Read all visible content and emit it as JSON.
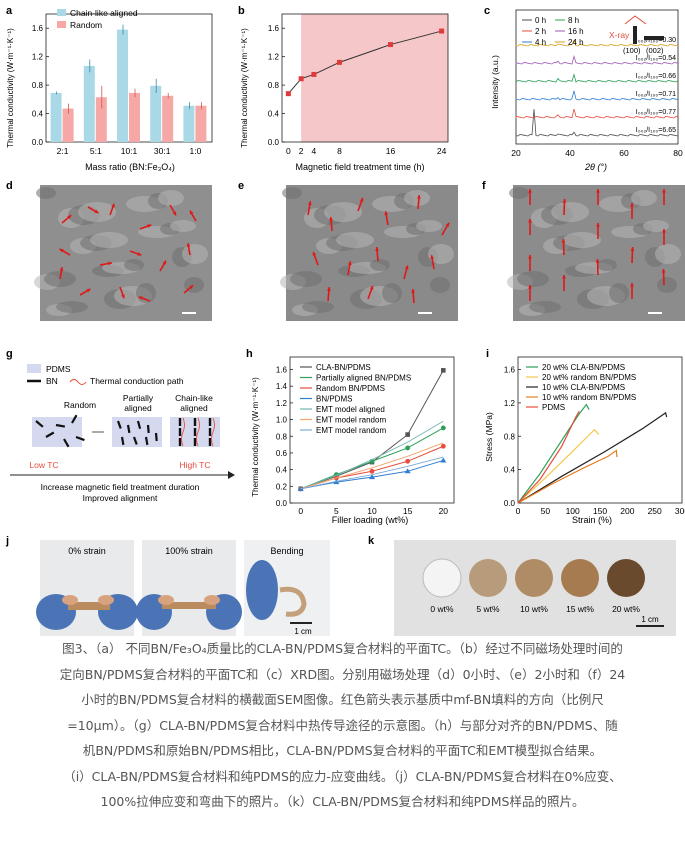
{
  "panel_labels": [
    "a",
    "b",
    "c",
    "d",
    "e",
    "f",
    "g",
    "h",
    "i",
    "j",
    "k"
  ],
  "chart_data": [
    {
      "id": "a",
      "type": "bar",
      "categories": [
        "2:1",
        "5:1",
        "10:1",
        "30:1",
        "1:0"
      ],
      "series": [
        {
          "name": "Chain-like aligned",
          "values": [
            0.69,
            1.07,
            1.58,
            0.79,
            0.51
          ],
          "errors": [
            0.02,
            0.09,
            0.07,
            0.1,
            0.05
          ],
          "color": "#a9d9e6"
        },
        {
          "name": "Random",
          "values": [
            0.47,
            0.63,
            0.69,
            0.65,
            0.51
          ],
          "errors": [
            0.07,
            0.16,
            0.06,
            0.04,
            0.05
          ],
          "color": "#f6a8a6"
        }
      ],
      "xlabel": "Mass ratio (BN:Fe₃O₄)",
      "ylabel": "Thermal conductivity (W·m⁻¹·K⁻¹)",
      "ylim": [
        0,
        1.8
      ],
      "yticks": [
        "0.0",
        "0.4",
        "0.8",
        "1.2",
        "1.6"
      ],
      "legend": "top-left"
    },
    {
      "id": "b",
      "type": "line",
      "x": [
        0,
        2,
        4,
        8,
        16,
        24
      ],
      "values": [
        0.68,
        0.89,
        0.95,
        1.12,
        1.37,
        1.56
      ],
      "xticks": [
        "0",
        "2",
        "4",
        "8",
        "16",
        "24"
      ],
      "yticks": [
        "0.0",
        "0.4",
        "0.8",
        "1.2",
        "1.6"
      ],
      "xlabel": "Magnetic field treatment time (h)",
      "ylabel": "Thermal conductivity (W·m⁻¹·K⁻¹)",
      "xlim": [
        -1,
        25
      ],
      "ylim": [
        0,
        1.8
      ],
      "shaded_from_x": 2,
      "shade_color": "#f5c7c9"
    },
    {
      "id": "c",
      "type": "line",
      "xlabel": "2θ (°)",
      "ylabel": "Intensity (a.u.)",
      "xticks": [
        "20",
        "40",
        "60",
        "80"
      ],
      "xlim": [
        20,
        80
      ],
      "series": [
        {
          "name": "0 h",
          "color": "#4d4d4d",
          "ratio": "I₀₀₂/I₁₀₀=6.65"
        },
        {
          "name": "2 h",
          "color": "#e74c3c",
          "ratio": "I₀₀₂/I₁₀₀=0.77"
        },
        {
          "name": "4 h",
          "color": "#2e7dd1",
          "ratio": "I₀₀₂/I₁₀₀=0.71"
        },
        {
          "name": "8 h",
          "color": "#2ca05a",
          "ratio": "I₀₀₂/I₁₀₀=0.66"
        },
        {
          "name": "16 h",
          "color": "#9b59b6",
          "ratio": "I₀₀₂/I₁₀₀=0.54"
        },
        {
          "name": "24 h",
          "color": "#d4a017",
          "ratio": "I₀₀₂/I₁₀₀=0.30"
        }
      ],
      "annotations": [
        "X-ray",
        "(100)",
        "(002)"
      ]
    },
    {
      "id": "h",
      "type": "line",
      "x": [
        0,
        5,
        10,
        15,
        20
      ],
      "xticks": [
        "0",
        "5",
        "10",
        "15",
        "20"
      ],
      "yticks": [
        "0.0",
        "0.2",
        "0.4",
        "0.6",
        "0.8",
        "1.0",
        "1.2",
        "1.4",
        "1.6"
      ],
      "xlabel": "Filler loading (wt%)",
      "ylabel": "Thermal conductivity (W·m⁻¹·K⁻¹)",
      "xlim": [
        -1.5,
        21.5
      ],
      "ylim": [
        0,
        1.75
      ],
      "series": [
        {
          "name": "CLA-BN/PDMS",
          "values": [
            0.17,
            0.32,
            0.49,
            0.82,
            1.59
          ],
          "color": "#555555",
          "marker": "square"
        },
        {
          "name": "Partially aligned BN/PDMS",
          "values": [
            0.17,
            0.34,
            0.5,
            0.66,
            0.9
          ],
          "color": "#2ca05a",
          "marker": "circle"
        },
        {
          "name": "Random BN/PDMS",
          "values": [
            0.17,
            0.3,
            0.38,
            0.5,
            0.68
          ],
          "color": "#e74c3c",
          "marker": "circle"
        },
        {
          "name": "BN/PDMS",
          "values": [
            0.17,
            0.25,
            0.31,
            0.38,
            0.51
          ],
          "color": "#2e7dd1",
          "marker": "triangle"
        },
        {
          "name": "EMT model aligned",
          "values": [
            0.17,
            0.33,
            0.52,
            0.73,
            0.98
          ],
          "color": "#6fb7b3",
          "marker": "none"
        },
        {
          "name": "EMT model random",
          "values": [
            0.17,
            0.3,
            0.42,
            0.56,
            0.72
          ],
          "color": "#f2a46a",
          "marker": "none"
        },
        {
          "name": "EMT model random",
          "values": [
            0.17,
            0.26,
            0.34,
            0.44,
            0.55
          ],
          "color": "#7aa9d6",
          "marker": "none"
        }
      ]
    },
    {
      "id": "i",
      "type": "line",
      "xticks": [
        "0",
        "50",
        "100",
        "150",
        "200",
        "250",
        "300"
      ],
      "yticks": [
        "0.0",
        "0.4",
        "0.8",
        "1.2",
        "1.6"
      ],
      "xlabel": "Strain (%)",
      "ylabel": "Stress (MPa)",
      "xlim": [
        0,
        300
      ],
      "ylim": [
        0,
        1.75
      ],
      "series": [
        {
          "name": "20 wt% CLA-BN/PDMS",
          "color": "#2ca05a",
          "x": [
            0,
            40,
            80,
            110,
            125,
            130
          ],
          "y": [
            0,
            0.35,
            0.75,
            1.05,
            1.18,
            1.12
          ]
        },
        {
          "name": "20 wt% random BN/PDMS",
          "color": "#f2c84b",
          "x": [
            0,
            50,
            100,
            140,
            148
          ],
          "y": [
            0,
            0.3,
            0.62,
            0.88,
            0.82
          ]
        },
        {
          "name": "10 wt% CLA-BN/PDMS",
          "color": "#222222",
          "x": [
            0,
            80,
            160,
            230,
            270,
            272
          ],
          "y": [
            0,
            0.32,
            0.62,
            0.9,
            1.08,
            1.03
          ]
        },
        {
          "name": "10 wt% random BN/PDMS",
          "color": "#e67e22",
          "x": [
            0,
            60,
            120,
            165,
            180,
            181
          ],
          "y": [
            0,
            0.22,
            0.42,
            0.56,
            0.63,
            0.55
          ]
        },
        {
          "name": "PDMS",
          "color": "#e74c3c",
          "x": [
            0,
            40,
            80,
            105,
            112
          ],
          "y": [
            0,
            0.28,
            0.68,
            1.02,
            1.1
          ]
        }
      ]
    }
  ],
  "panel_g": {
    "legend": [
      "PDMS",
      "BN",
      "Thermal conduction path"
    ],
    "states": [
      "Random",
      "Partially\naligned",
      "Chain-like\naligned"
    ],
    "low": "Low TC",
    "high": "High TC",
    "line1": "Increase magnetic field treatment duration",
    "line2": "Improved alignment"
  },
  "panel_j": {
    "labels": [
      "0% strain",
      "100% strain",
      "Bending"
    ],
    "scale": "1 cm"
  },
  "panel_k": {
    "labels": [
      "0 wt%",
      "5 wt%",
      "10 wt%",
      "15 wt%",
      "20 wt%"
    ],
    "scale": "1 cm"
  },
  "caption": [
    "图3、（a） 不同BN/Fe₃O₄质量比的CLA-BN/PDMS复合材料的平面TC。（b）经过不同磁场处理时间的",
    "定向BN/PDMS复合材料的平面TC和（c）XRD图。分别用磁场处理（d）0小时、（e）2小时和（f）24",
    "小时的BN/PDMS复合材料的横截面SEM图像。红色箭头表示基质中mf-BN填料的方向（比例尺",
    "=10μm）。（g）CLA-BN/PDMS复合材料中热传导途径的示意图。（h）与部分对齐的BN/PDMS、随",
    "机BN/PDMS和原始BN/PDMS相比，CLA-BN/PDMS复合材料的平面TC和EMT模型拟合结果。",
    "（i）CLA-BN/PDMS复合材料和纯PDMS的应力-应变曲线。（j）CLA-BN/PDMS复合材料在0%应变、",
    "100%拉伸应变和弯曲下的照片。（k）CLA-BN/PDMS复合材料和纯PDMS样品的照片。"
  ]
}
